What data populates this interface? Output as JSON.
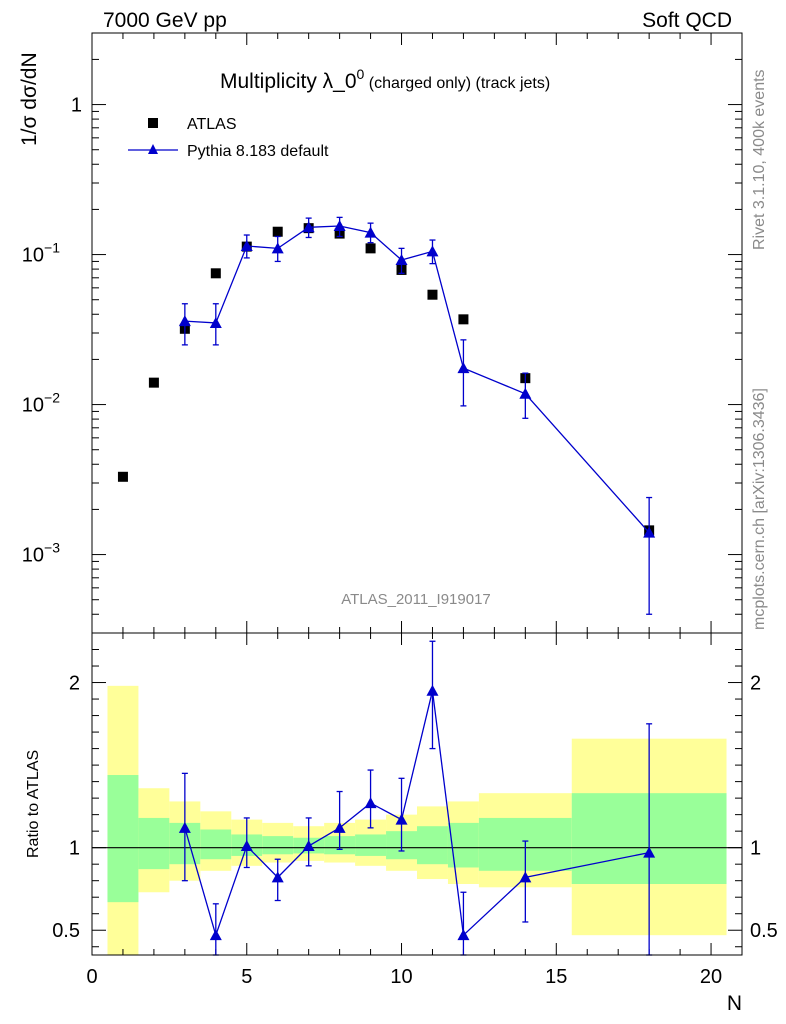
{
  "header": {
    "left": "7000 GeV pp",
    "right": "Soft QCD"
  },
  "side_labels": {
    "top": "Rivet 3.1.10,  400k events",
    "bottom": "mcplots.cern.ch [arXiv:1306.3436]"
  },
  "chart_data": [
    {
      "type": "scatter",
      "title": "Multiplicity λ_0",
      "title_sup": "0",
      "title_suffix": " (charged only) (track jets)",
      "ylabel": "1/σ dσ/dN",
      "yscale": "log",
      "xlim": [
        0,
        21
      ],
      "ylim": [
        0.0003,
        3
      ],
      "watermark": "ATLAS_2011_I919017",
      "yticks": [
        {
          "value": 0.001,
          "base": "10",
          "exp": "−3"
        },
        {
          "value": 0.01,
          "base": "10",
          "exp": "−2"
        },
        {
          "value": 0.1,
          "base": "10",
          "exp": "−1"
        },
        {
          "value": 1,
          "base": "1",
          "exp": ""
        }
      ],
      "legend": [
        {
          "label": "ATLAS",
          "marker": "square",
          "color": "#000000"
        },
        {
          "label": "Pythia 8.183 default",
          "marker": "triangle",
          "color": "#0000cc"
        }
      ],
      "series": [
        {
          "name": "ATLAS",
          "x": [
            1,
            2,
            3,
            4,
            5,
            6,
            7,
            8,
            9,
            10,
            11,
            12,
            14,
            18
          ],
          "y": [
            0.0033,
            0.014,
            0.032,
            0.075,
            0.113,
            0.142,
            0.15,
            0.138,
            0.11,
            0.079,
            0.054,
            0.037,
            0.015,
            0.00145
          ]
        },
        {
          "name": "Pythia 8.183 default",
          "x": [
            3,
            4,
            5,
            6,
            7,
            8,
            9,
            10,
            11,
            12,
            14,
            18
          ],
          "y": [
            0.036,
            0.035,
            0.114,
            0.11,
            0.152,
            0.155,
            0.14,
            0.092,
            0.105,
            0.0175,
            0.0118,
            0.0014
          ],
          "err_low": [
            0.025,
            0.025,
            0.095,
            0.09,
            0.13,
            0.132,
            0.12,
            0.075,
            0.087,
            0.0098,
            0.0081,
            0.0004
          ],
          "err_high": [
            0.047,
            0.047,
            0.135,
            0.132,
            0.175,
            0.177,
            0.162,
            0.11,
            0.125,
            0.027,
            0.0162,
            0.0024
          ]
        }
      ]
    },
    {
      "type": "line",
      "ylabel": "Ratio to ATLAS",
      "xlabel": "N",
      "xlim": [
        0,
        21
      ],
      "ylim": [
        0.35,
        2.3
      ],
      "xticks": [
        0,
        5,
        10,
        15,
        20
      ],
      "yticks": [
        0.5,
        1,
        2
      ],
      "reference": 1,
      "bands": {
        "bins": [
          [
            0.5,
            1.5
          ],
          [
            1.5,
            2.5
          ],
          [
            2.5,
            3.5
          ],
          [
            3.5,
            4.5
          ],
          [
            4.5,
            5.5
          ],
          [
            5.5,
            6.5
          ],
          [
            6.5,
            7.5
          ],
          [
            7.5,
            8.5
          ],
          [
            8.5,
            9.5
          ],
          [
            9.5,
            10.5
          ],
          [
            10.5,
            11.5
          ],
          [
            11.5,
            12.5
          ],
          [
            12.5,
            15.5
          ],
          [
            15.5,
            20.5
          ]
        ],
        "green_low": [
          0.67,
          0.87,
          0.9,
          0.93,
          0.95,
          0.96,
          0.965,
          0.96,
          0.95,
          0.93,
          0.9,
          0.88,
          0.86,
          0.78
        ],
        "green_high": [
          1.44,
          1.18,
          1.15,
          1.11,
          1.08,
          1.07,
          1.06,
          1.07,
          1.08,
          1.1,
          1.13,
          1.15,
          1.18,
          1.33
        ],
        "yellow_low": [
          0.3,
          0.73,
          0.8,
          0.86,
          0.89,
          0.91,
          0.92,
          0.91,
          0.89,
          0.86,
          0.81,
          0.78,
          0.76,
          0.47
        ],
        "yellow_high": [
          1.98,
          1.36,
          1.28,
          1.22,
          1.17,
          1.15,
          1.13,
          1.15,
          1.17,
          1.2,
          1.25,
          1.28,
          1.33,
          1.66
        ]
      },
      "series": [
        {
          "name": "Pythia 8.183 default / ATLAS",
          "x": [
            3,
            4,
            5,
            6,
            7,
            8,
            9,
            10,
            11,
            12,
            14,
            18
          ],
          "y": [
            1.12,
            0.47,
            1.01,
            0.82,
            1.01,
            1.12,
            1.27,
            1.17,
            1.95,
            0.47,
            0.82,
            0.97
          ],
          "err_low": [
            0.8,
            0.35,
            0.88,
            0.68,
            0.89,
            0.99,
            1.12,
            0.98,
            1.6,
            0.35,
            0.55,
            0.35
          ],
          "err_high": [
            1.45,
            0.66,
            1.18,
            0.93,
            1.18,
            1.34,
            1.47,
            1.42,
            2.25,
            0.73,
            1.04,
            1.75
          ]
        }
      ]
    }
  ]
}
